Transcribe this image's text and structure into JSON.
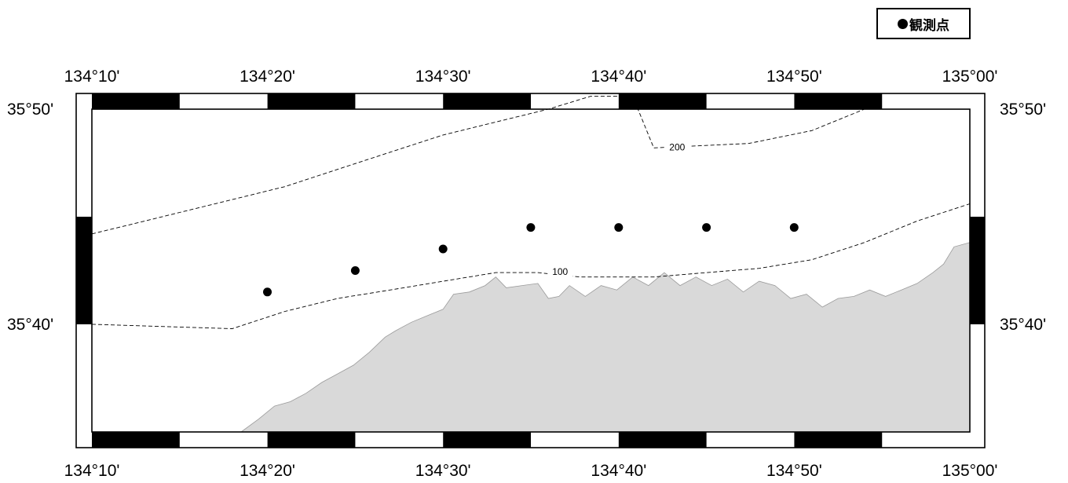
{
  "legend": {
    "symbol": "dot-icon",
    "label": "観測点"
  },
  "map": {
    "lon_range": [
      134.1667,
      135.0
    ],
    "lat_range": [
      35.5833,
      35.8333
    ],
    "land_color": "#d9d9d9",
    "frame_color": "#000000",
    "lon_ticks": [
      {
        "value": 134.1667,
        "label": "134°10'"
      },
      {
        "value": 134.3333,
        "label": "134°20'"
      },
      {
        "value": 134.5,
        "label": "134°30'"
      },
      {
        "value": 134.6667,
        "label": "134°40'"
      },
      {
        "value": 134.8333,
        "label": "134°50'"
      },
      {
        "value": 135.0,
        "label": "135°00'"
      }
    ],
    "lat_ticks": [
      {
        "value": 35.8333,
        "label": "35°50'"
      },
      {
        "value": 35.6667,
        "label": "35°40'"
      }
    ],
    "contours": [
      {
        "label": "200",
        "label_position": [
          134.7222,
          35.8033
        ],
        "path": [
          [
            134.1667,
            35.7367
          ],
          [
            134.2,
            35.7433
          ],
          [
            134.25,
            35.7533
          ],
          [
            134.3,
            35.7633
          ],
          [
            134.35,
            35.7733
          ],
          [
            134.4,
            35.7867
          ],
          [
            134.45,
            35.8
          ],
          [
            134.5,
            35.8133
          ],
          [
            134.55,
            35.8233
          ],
          [
            134.6,
            35.8333
          ],
          [
            134.64,
            35.8433
          ],
          [
            134.68,
            35.8433
          ],
          [
            134.7,
            35.8033
          ],
          [
            134.79,
            35.8067
          ],
          [
            134.85,
            35.8167
          ],
          [
            134.9,
            35.8333
          ],
          [
            135.0,
            35.8333
          ]
        ]
      },
      {
        "label": "100",
        "label_position": [
          134.6111,
          35.7067
        ],
        "path": [
          [
            134.1667,
            35.6667
          ],
          [
            134.3,
            35.6633
          ],
          [
            134.35,
            35.6767
          ],
          [
            134.4,
            35.6867
          ],
          [
            134.45,
            35.6933
          ],
          [
            134.5,
            35.7
          ],
          [
            134.55,
            35.7067
          ],
          [
            134.59,
            35.7067
          ],
          [
            134.63,
            35.7033
          ],
          [
            134.7,
            35.7033
          ],
          [
            134.75,
            35.7067
          ],
          [
            134.8,
            35.71
          ],
          [
            134.85,
            35.7167
          ],
          [
            134.9,
            35.73
          ],
          [
            134.95,
            35.7467
          ],
          [
            135.0,
            35.76
          ]
        ]
      }
    ],
    "stations": [
      {
        "lon": 134.3333,
        "lat": 35.6917
      },
      {
        "lon": 134.4167,
        "lat": 35.7083
      },
      {
        "lon": 134.5,
        "lat": 35.725
      },
      {
        "lon": 134.5833,
        "lat": 35.7417
      },
      {
        "lon": 134.6667,
        "lat": 35.7417
      },
      {
        "lon": 134.75,
        "lat": 35.7417
      },
      {
        "lon": 134.8333,
        "lat": 35.7417
      }
    ],
    "coastline": [
      [
        134.3083,
        35.5833
      ],
      [
        134.325,
        35.5933
      ],
      [
        134.34,
        35.6033
      ],
      [
        134.355,
        35.6067
      ],
      [
        134.37,
        35.6133
      ],
      [
        134.385,
        35.6217
      ],
      [
        134.4,
        35.6283
      ],
      [
        134.415,
        35.635
      ],
      [
        134.43,
        35.645
      ],
      [
        134.445,
        35.6567
      ],
      [
        134.455,
        35.6617
      ],
      [
        134.47,
        35.6683
      ],
      [
        134.485,
        35.6733
      ],
      [
        134.5,
        35.6783
      ],
      [
        134.51,
        35.69
      ],
      [
        134.525,
        35.6917
      ],
      [
        134.54,
        35.6967
      ],
      [
        134.55,
        35.7033
      ],
      [
        134.56,
        35.695
      ],
      [
        134.575,
        35.6967
      ],
      [
        134.59,
        35.6983
      ],
      [
        134.6,
        35.6867
      ],
      [
        134.61,
        35.6883
      ],
      [
        134.62,
        35.6967
      ],
      [
        134.635,
        35.6883
      ],
      [
        134.65,
        35.6967
      ],
      [
        134.665,
        35.6933
      ],
      [
        134.68,
        35.7033
      ],
      [
        134.695,
        35.6967
      ],
      [
        134.71,
        35.7067
      ],
      [
        134.725,
        35.6967
      ],
      [
        134.74,
        35.7033
      ],
      [
        134.755,
        35.6967
      ],
      [
        134.77,
        35.7017
      ],
      [
        134.785,
        35.6917
      ],
      [
        134.8,
        35.7
      ],
      [
        134.815,
        35.6967
      ],
      [
        134.83,
        35.6867
      ],
      [
        134.845,
        35.69
      ],
      [
        134.86,
        35.68
      ],
      [
        134.875,
        35.6867
      ],
      [
        134.89,
        35.6883
      ],
      [
        134.905,
        35.6933
      ],
      [
        134.92,
        35.6883
      ],
      [
        134.935,
        35.6933
      ],
      [
        134.95,
        35.6983
      ],
      [
        134.965,
        35.7067
      ],
      [
        134.975,
        35.7133
      ],
      [
        134.985,
        35.7267
      ],
      [
        135.0,
        35.73
      ],
      [
        135.0,
        35.5833
      ]
    ]
  }
}
